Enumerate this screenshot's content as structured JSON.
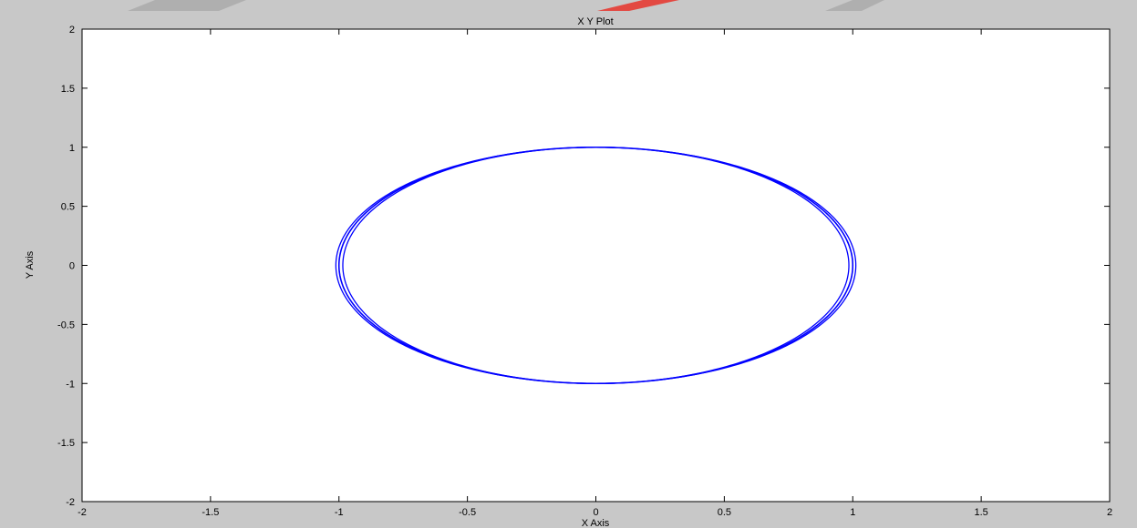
{
  "figure": {
    "background_color": "#c8c8c8",
    "decoration_colors": [
      "#9a9a9a",
      "#e8322a"
    ]
  },
  "chart_data": {
    "type": "line",
    "title": "X Y Plot",
    "xlabel": "X Axis",
    "ylabel": "Y Axis",
    "xlim": [
      -2,
      2
    ],
    "ylim": [
      -2,
      2
    ],
    "x_ticks": [
      -2,
      -1.5,
      -1,
      -0.5,
      0,
      0.5,
      1,
      1.5,
      2
    ],
    "y_ticks": [
      -2,
      -1.5,
      -1,
      -0.5,
      0,
      0.5,
      1,
      1.5,
      2
    ],
    "x_tick_labels": [
      "-2",
      "-1.5",
      "-1",
      "-0.5",
      "0",
      "0.5",
      "1",
      "1.5",
      "2"
    ],
    "y_tick_labels": [
      "-2",
      "-1.5",
      "-1",
      "-0.5",
      "0",
      "0.5",
      "1",
      "1.5",
      "2"
    ],
    "grid": false,
    "legend": "none",
    "series": [
      {
        "color": "#0000ff",
        "shape": "closed curve (unit circle x=cos t, y=sin t)",
        "x": [
          1,
          0.924,
          0.707,
          0.383,
          0,
          -0.383,
          -0.707,
          -0.924,
          -1,
          -0.924,
          -0.707,
          -0.383,
          0,
          0.383,
          0.707,
          0.924,
          1
        ],
        "y": [
          0,
          0.383,
          0.707,
          0.924,
          1,
          0.924,
          0.707,
          0.383,
          0,
          -0.383,
          -0.707,
          -0.924,
          -1,
          -0.924,
          -0.707,
          -0.383,
          0
        ]
      }
    ]
  }
}
